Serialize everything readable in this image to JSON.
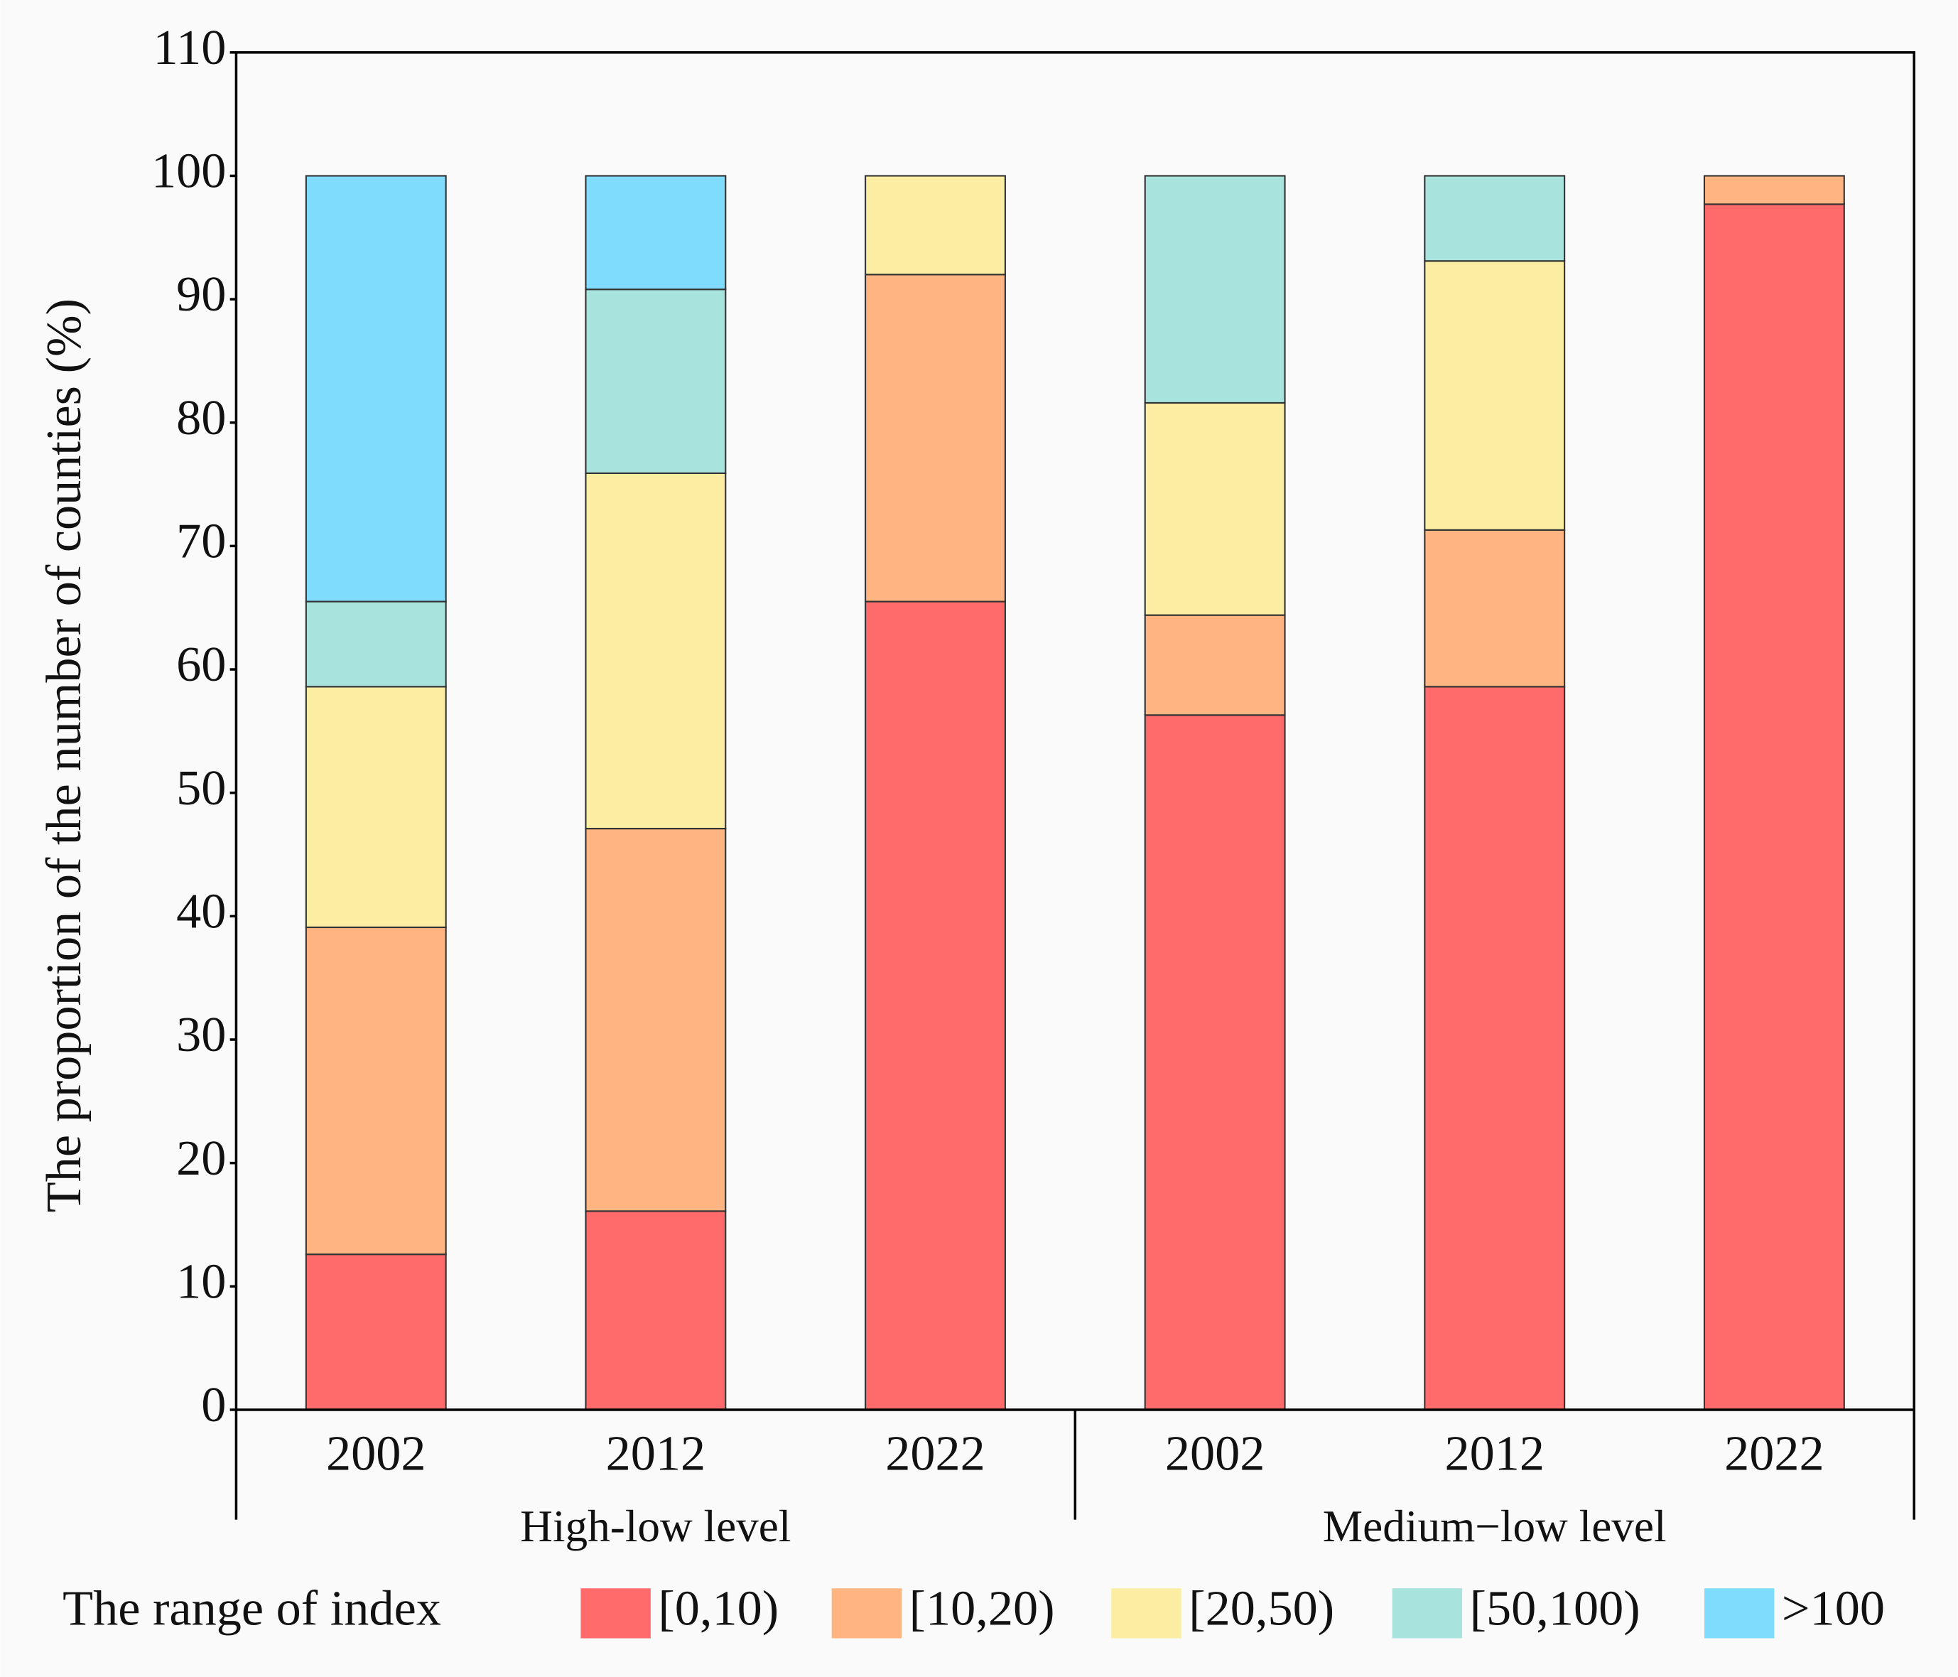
{
  "chart_data": {
    "type": "stacked-bar",
    "y_label": "The proportion of the number of counties (%)",
    "categories": [
      "2002",
      "2012",
      "2022",
      "2002",
      "2012",
      "2022"
    ],
    "group_labels": [
      "High-low level",
      "Medium−low  level"
    ],
    "legend_title": "The range of index",
    "series": [
      {
        "name": "[0,10)",
        "color": "#ff6b6b",
        "values": [
          12.6,
          16.1,
          65.5,
          56.3,
          58.6,
          97.7
        ]
      },
      {
        "name": "[10,20)",
        "color": "#ffb482",
        "values": [
          26.5,
          31.0,
          26.5,
          8.1,
          12.7,
          2.3
        ]
      },
      {
        "name": "[20,50)",
        "color": "#fbeea2",
        "values": [
          19.5,
          28.8,
          8.0,
          17.2,
          21.8,
          0
        ]
      },
      {
        "name": "[50,100)",
        "color": "#a8e3de",
        "values": [
          6.9,
          14.9,
          0,
          18.4,
          6.9,
          0
        ]
      },
      {
        "name": ">100",
        "color": "#80dcfc",
        "values": [
          34.5,
          9.2,
          0,
          0,
          0,
          0
        ]
      }
    ],
    "ylim": [
      0,
      110
    ],
    "yticks": [
      0,
      10,
      20,
      30,
      40,
      50,
      60,
      70,
      80,
      90,
      100,
      110
    ]
  }
}
